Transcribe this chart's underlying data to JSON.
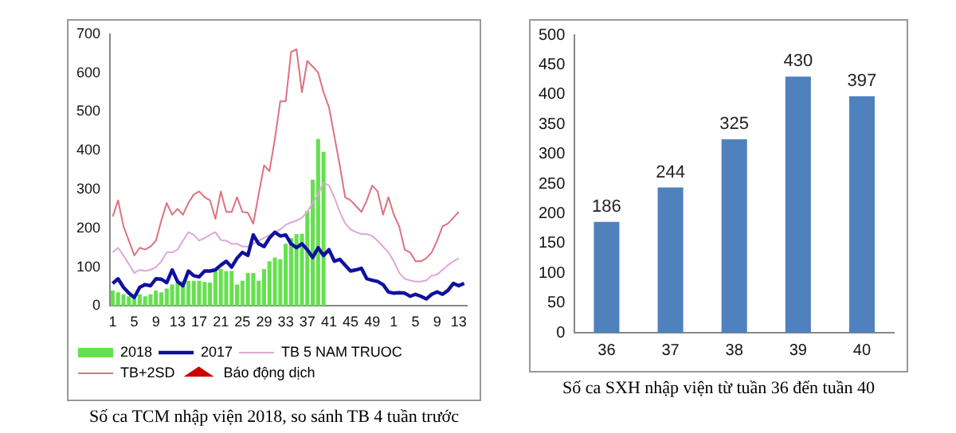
{
  "chart_data": [
    {
      "type": "bar",
      "title": "Số ca TCM nhập viện 2018, so sánh TB 4 tuần trước",
      "categories": [
        "1",
        null,
        null,
        null,
        "5",
        null,
        null,
        null,
        "9",
        null,
        null,
        null,
        "13",
        null,
        null,
        null,
        "17",
        null,
        null,
        null,
        "21",
        null,
        null,
        null,
        "25",
        null,
        null,
        null,
        "29",
        null,
        null,
        null,
        "33",
        null,
        null,
        null,
        "37",
        null,
        null,
        null,
        "41",
        null,
        null,
        null,
        "45",
        null,
        null,
        null,
        "49",
        null,
        null,
        null,
        "1",
        null,
        null,
        null,
        "5",
        null,
        null,
        null,
        "9",
        null,
        null,
        null,
        "13",
        null
      ],
      "ylim": [
        0,
        700
      ],
      "yticks": [
        0,
        100,
        200,
        300,
        400,
        500,
        600,
        700
      ],
      "grid": false,
      "legend": "bottom",
      "series": [
        {
          "name": "2018",
          "type": "bar",
          "color": "#66e050",
          "values": [
            40,
            35,
            30,
            25,
            20,
            30,
            25,
            30,
            40,
            35,
            45,
            55,
            60,
            65,
            65,
            65,
            65,
            62,
            60,
            90,
            95,
            90,
            90,
            55,
            65,
            85,
            85,
            65,
            95,
            115,
            125,
            120,
            160,
            175,
            185,
            186,
            244,
            325,
            430,
            397,
            null,
            null,
            null,
            null,
            null,
            null,
            null,
            null,
            null,
            null,
            null,
            null,
            null,
            null,
            null,
            null,
            null,
            null,
            null,
            null,
            null,
            null,
            null,
            null,
            null,
            null
          ]
        },
        {
          "name": "2017",
          "type": "line",
          "marker": "none",
          "color": "#1010a0",
          "values": [
            58,
            70,
            48,
            33,
            22,
            48,
            55,
            52,
            70,
            69,
            60,
            93,
            63,
            52,
            90,
            78,
            75,
            90,
            90,
            93,
            105,
            115,
            100,
            123,
            138,
            130,
            183,
            160,
            153,
            175,
            190,
            180,
            183,
            160,
            150,
            160,
            145,
            125,
            150,
            130,
            145,
            115,
            120,
            105,
            90,
            93,
            97,
            70,
            66,
            63,
            55,
            36,
            33,
            34,
            33,
            25,
            30,
            25,
            18,
            30,
            36,
            30,
            40,
            58,
            52,
            58
          ]
        },
        {
          "name": "TB 5 NAM TRUOC",
          "type": "line",
          "marker": "none",
          "color": "#e0a6d8",
          "values": [
            138,
            150,
            130,
            108,
            85,
            93,
            90,
            93,
            100,
            115,
            138,
            138,
            145,
            168,
            190,
            183,
            168,
            175,
            183,
            190,
            170,
            168,
            160,
            160,
            153,
            153,
            160,
            168,
            175,
            183,
            190,
            197,
            209,
            215,
            220,
            227,
            242,
            265,
            287,
            317,
            310,
            280,
            242,
            212,
            197,
            190,
            185,
            185,
            180,
            168,
            153,
            138,
            115,
            85,
            70,
            66,
            63,
            63,
            66,
            78,
            81,
            93,
            105,
            115,
            123,
            null
          ]
        },
        {
          "name": "TB+2SD",
          "type": "line",
          "marker": "none",
          "color": "#dc7282",
          "values": [
            230,
            272,
            205,
            168,
            130,
            150,
            145,
            153,
            168,
            220,
            265,
            235,
            250,
            235,
            265,
            287,
            295,
            280,
            272,
            224,
            295,
            242,
            242,
            280,
            242,
            240,
            212,
            287,
            362,
            347,
            430,
            527,
            527,
            654,
            661,
            550,
            631,
            616,
            601,
            550,
            512,
            437,
            362,
            280,
            272,
            257,
            242,
            272,
            310,
            295,
            235,
            280,
            235,
            205,
            145,
            138,
            115,
            115,
            123,
            138,
            168,
            205,
            212,
            227,
            242,
            null
          ]
        },
        {
          "name": "Báo động dịch",
          "type": "scatter",
          "marker": "triangle",
          "color": "#cc0000",
          "values": [
            null,
            null,
            null,
            null,
            null,
            null,
            null,
            null,
            null,
            null,
            null,
            null,
            null,
            null,
            null,
            null,
            null,
            null,
            null,
            null,
            null,
            null,
            null,
            null,
            null,
            null,
            null,
            null,
            null,
            null,
            null,
            null,
            null,
            null,
            null,
            null,
            null,
            null,
            null,
            null,
            null,
            null,
            null,
            null,
            null,
            null,
            null,
            null,
            null,
            null,
            null,
            null,
            null,
            null,
            null,
            null,
            null,
            null,
            null,
            null,
            null,
            null,
            null,
            null,
            null,
            null
          ]
        }
      ]
    },
    {
      "type": "bar",
      "title": "Số ca SXH nhập viện từ tuần 36  đến tuần 40",
      "categories": [
        "36",
        "37",
        "38",
        "39",
        "40"
      ],
      "values": [
        186,
        244,
        325,
        430,
        397
      ],
      "color": "#4f81bd",
      "ylim": [
        0,
        500
      ],
      "yticks": [
        0,
        50,
        100,
        150,
        200,
        250,
        300,
        350,
        400,
        450,
        500
      ],
      "grid": false,
      "data_labels": true
    }
  ]
}
